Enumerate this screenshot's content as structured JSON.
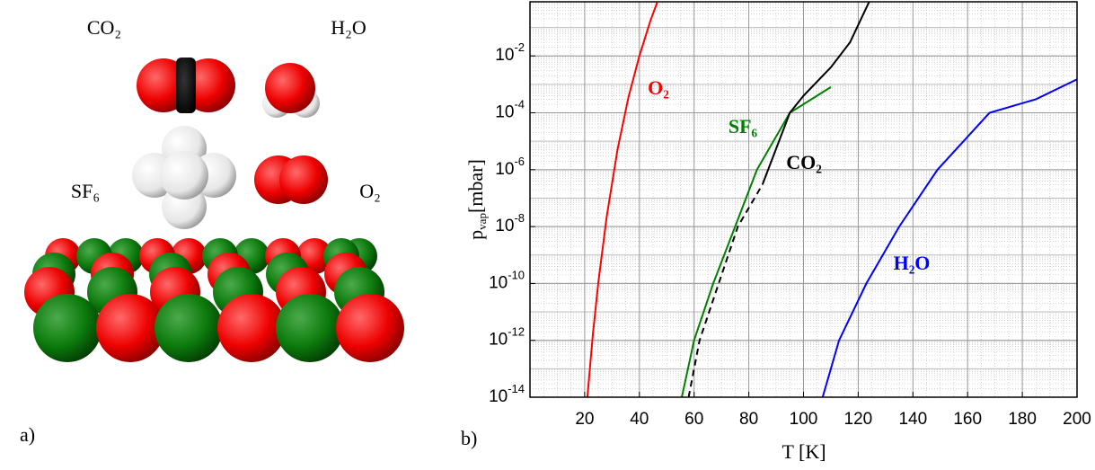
{
  "panel_a": {
    "label": "a)",
    "molecules": [
      "CO₂",
      "H₂O",
      "SF₆",
      "O₂"
    ]
  },
  "chart_data": {
    "type": "line",
    "panel_label": "b)",
    "xlabel": "T [K]",
    "ylabel_symbol": "p",
    "ylabel_subscript": "vap",
    "ylabel_unit": "[mbar]",
    "xlim": [
      0,
      200
    ],
    "xticks": [
      20,
      40,
      60,
      80,
      100,
      120,
      140,
      160,
      180,
      200
    ],
    "ylim": [
      1e-14,
      0.8
    ],
    "log_y": true,
    "grid": true,
    "minor_grid": true,
    "yticks": [
      {
        "value": 1e-14,
        "label": "10-14"
      },
      {
        "value": 1e-12,
        "label": "10-12"
      },
      {
        "value": 1e-10,
        "label": "10-10"
      },
      {
        "value": 1e-08,
        "label": "10-8"
      },
      {
        "value": 1e-06,
        "label": "10-6"
      },
      {
        "value": 0.0001,
        "label": "10-4"
      },
      {
        "value": 0.01,
        "label": "10-2"
      }
    ],
    "series": [
      {
        "name": "O₂",
        "color": "#ff0000",
        "x": [
          21,
          23,
          25,
          28,
          32,
          36,
          40,
          44,
          46.5
        ],
        "values": [
          1e-14,
          1.6e-12,
          1.1e-10,
          2.1e-08,
          5e-06,
          0.00035,
          0.01,
          0.17,
          0.76
        ]
      },
      {
        "name": "SF₆",
        "color": "#008000",
        "x": [
          55.5,
          60,
          67,
          75,
          83,
          95,
          110
        ],
        "values": [
          1e-14,
          1e-12,
          1e-10,
          1e-08,
          1e-06,
          0.0001,
          0.0008
        ]
      },
      {
        "color": "#000000",
        "dashed": true,
        "x": [
          58,
          62,
          69,
          76,
          85
        ],
        "values": [
          1e-14,
          1e-12,
          1e-10,
          1e-08,
          3e-07
        ]
      },
      {
        "name": "CO₂",
        "color": "#000000",
        "x": [
          85,
          95,
          100,
          110,
          117,
          124
        ],
        "values": [
          3e-07,
          0.0001,
          0.0004,
          0.004,
          0.03,
          0.8
        ]
      },
      {
        "name": "H₂O",
        "color": "#0000ff",
        "x": [
          107,
          113,
          123,
          135,
          149,
          168,
          185,
          200
        ],
        "values": [
          1e-14,
          1e-12,
          1e-10,
          1e-08,
          1e-06,
          0.0001,
          0.0003,
          0.0015
        ]
      }
    ]
  }
}
